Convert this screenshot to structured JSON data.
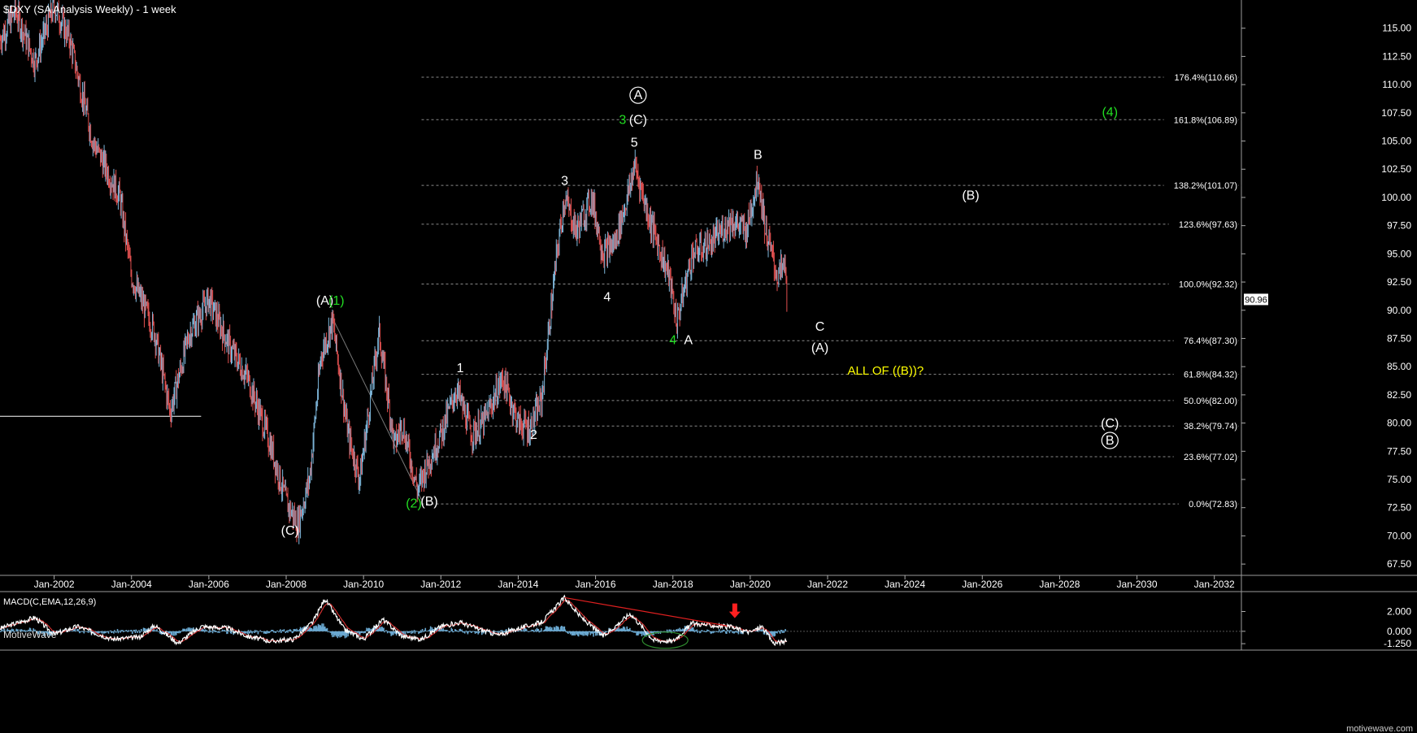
{
  "header": {
    "title": "$DXY (SA Analysis Weekly) - 1 week"
  },
  "watermark": "MotiveWave",
  "footer_brand": "motivewave.com",
  "price_tag": "90.96",
  "colors": {
    "background": "#000000",
    "bar_up": "#7fb8dc",
    "bar_down": "#e05050",
    "fib_line": "#8a8a8a",
    "green_label": "#22dd22",
    "yellow_label": "#ffff00",
    "macd_line": "#ffffff",
    "signal_line": "#d03030",
    "histogram": "#6aa8d0",
    "arrow": "#ff2020"
  },
  "chart_data": [
    {
      "type": "candlestick",
      "title": "$DXY (SA Analysis Weekly) - 1 week",
      "ylim": [
        66.5,
        117.5
      ],
      "xlim": [
        2000.6,
        2032.7
      ],
      "y_ticks": [
        "67.50",
        "70.00",
        "72.50",
        "75.00",
        "77.50",
        "80.00",
        "82.50",
        "85.00",
        "87.50",
        "90.00",
        "92.50",
        "95.00",
        "97.50",
        "100.00",
        "102.50",
        "105.00",
        "107.50",
        "110.00",
        "112.50",
        "115.00"
      ],
      "x_ticks": [
        "Jan-2002",
        "Jan-2004",
        "Jan-2006",
        "Jan-2008",
        "Jan-2010",
        "Jan-2012",
        "Jan-2014",
        "Jan-2016",
        "Jan-2018",
        "Jan-2020",
        "Jan-2022",
        "Jan-2024",
        "Jan-2026",
        "Jan-2028",
        "Jan-2030",
        "Jan-2032"
      ],
      "last_price": 90.96,
      "price_path": [
        [
          2000.6,
          114
        ],
        [
          2001.0,
          116.5
        ],
        [
          2001.5,
          112
        ],
        [
          2002.0,
          117
        ],
        [
          2002.4,
          114
        ],
        [
          2003.0,
          105
        ],
        [
          2003.7,
          100
        ],
        [
          2004.0,
          93
        ],
        [
          2004.6,
          88
        ],
        [
          2005.0,
          81
        ],
        [
          2005.5,
          88
        ],
        [
          2006.0,
          91
        ],
        [
          2006.5,
          87
        ],
        [
          2007.0,
          84
        ],
        [
          2007.6,
          78
        ],
        [
          2008.0,
          73
        ],
        [
          2008.3,
          71
        ],
        [
          2008.6,
          75
        ],
        [
          2008.9,
          86
        ],
        [
          2009.2,
          89
        ],
        [
          2009.6,
          79
        ],
        [
          2009.9,
          75
        ],
        [
          2010.4,
          88
        ],
        [
          2010.8,
          78
        ],
        [
          2011.0,
          80
        ],
        [
          2011.4,
          74
        ],
        [
          2011.6,
          76
        ],
        [
          2012.0,
          79
        ],
        [
          2012.4,
          83
        ],
        [
          2012.8,
          79
        ],
        [
          2013.1,
          80
        ],
        [
          2013.6,
          84
        ],
        [
          2014.0,
          80
        ],
        [
          2014.3,
          79.5
        ],
        [
          2014.6,
          82
        ],
        [
          2015.0,
          95
        ],
        [
          2015.2,
          100
        ],
        [
          2015.5,
          97
        ],
        [
          2015.9,
          100
        ],
        [
          2016.2,
          95
        ],
        [
          2016.5,
          96
        ],
        [
          2016.9,
          101
        ],
        [
          2017.0,
          103
        ],
        [
          2017.4,
          98
        ],
        [
          2017.9,
          93
        ],
        [
          2018.1,
          89
        ],
        [
          2018.5,
          95
        ],
        [
          2019.0,
          96
        ],
        [
          2019.5,
          98
        ],
        [
          2019.9,
          97
        ],
        [
          2020.2,
          102
        ],
        [
          2020.4,
          97
        ],
        [
          2020.7,
          93
        ],
        [
          2020.9,
          94
        ],
        [
          2020.95,
          91
        ]
      ],
      "fib_levels": [
        {
          "label": "176.4%(110.66)",
          "value": 110.66
        },
        {
          "label": "161.8%(106.89)",
          "value": 106.89
        },
        {
          "label": "138.2%(101.07)",
          "value": 101.07
        },
        {
          "label": "123.6%(97.63)",
          "value": 97.63
        },
        {
          "label": "100.0%(92.32)",
          "value": 92.32
        },
        {
          "label": "76.4%(87.30)",
          "value": 87.3
        },
        {
          "label": "61.8%(84.32)",
          "value": 84.32
        },
        {
          "label": "50.0%(82.00)",
          "value": 82.0
        },
        {
          "label": "38.2%(79.74)",
          "value": 79.74
        },
        {
          "label": "23.6%(77.02)",
          "value": 77.02
        },
        {
          "label": "0.0%(72.83)",
          "value": 72.83
        }
      ],
      "wave_labels": [
        {
          "text": "(A)",
          "x": 2009.0,
          "y": 90.5,
          "color": "white"
        },
        {
          "text": "(1)",
          "x": 2009.3,
          "y": 90.5,
          "color": "green"
        },
        {
          "text": "(C)",
          "x": 2008.1,
          "y": 70.1,
          "color": "white"
        },
        {
          "text": "(2)",
          "x": 2011.3,
          "y": 72.5,
          "color": "green"
        },
        {
          "text": "(B)",
          "x": 2011.7,
          "y": 72.7,
          "color": "white"
        },
        {
          "text": "1",
          "x": 2012.5,
          "y": 84.5,
          "color": "white"
        },
        {
          "text": "2",
          "x": 2014.4,
          "y": 78.6,
          "color": "white"
        },
        {
          "text": "3",
          "x": 2015.2,
          "y": 101.1,
          "color": "white"
        },
        {
          "text": "4",
          "x": 2016.3,
          "y": 90.8,
          "color": "white"
        },
        {
          "text": "5",
          "x": 2017.0,
          "y": 104.5,
          "color": "white"
        },
        {
          "text": "3",
          "x": 2016.7,
          "y": 106.5,
          "color": "green"
        },
        {
          "text": "(C)",
          "x": 2017.1,
          "y": 106.5,
          "color": "white"
        },
        {
          "text": "A",
          "x": 2017.1,
          "y": 108.7,
          "color": "white",
          "circled": true
        },
        {
          "text": "4",
          "x": 2018.0,
          "y": 87.0,
          "color": "green"
        },
        {
          "text": "A",
          "x": 2018.4,
          "y": 87.0,
          "color": "white"
        },
        {
          "text": "B",
          "x": 2020.2,
          "y": 103.4,
          "color": "white"
        },
        {
          "text": "C",
          "x": 2021.8,
          "y": 88.2,
          "color": "white"
        },
        {
          "text": "(A)",
          "x": 2021.8,
          "y": 86.3,
          "color": "white"
        },
        {
          "text": "ALL OF ((B))?",
          "x": 2023.5,
          "y": 84.3,
          "color": "yellow"
        },
        {
          "text": "(B)",
          "x": 2025.7,
          "y": 99.8,
          "color": "white"
        },
        {
          "text": "(4)",
          "x": 2029.3,
          "y": 107.2,
          "color": "green"
        },
        {
          "text": "(C)",
          "x": 2029.3,
          "y": 79.6,
          "color": "white"
        },
        {
          "text": "B",
          "x": 2029.3,
          "y": 78.1,
          "color": "white",
          "circled": true
        }
      ]
    },
    {
      "type": "line",
      "title": "MACD(C,EMA,12,26,9)",
      "ylim": [
        -1.9,
        3.6
      ],
      "y_ticks": [
        "2.000",
        "0.000",
        "-1.250"
      ],
      "series": [],
      "macd_path": [
        [
          2000.6,
          0.3
        ],
        [
          2001.5,
          1.4
        ],
        [
          2002.0,
          -0.3
        ],
        [
          2002.6,
          0.5
        ],
        [
          2003.5,
          -0.8
        ],
        [
          2004.2,
          -0.6
        ],
        [
          2004.6,
          0.6
        ],
        [
          2005.2,
          -1.2
        ],
        [
          2005.8,
          0.5
        ],
        [
          2006.5,
          0.3
        ],
        [
          2007.0,
          -0.5
        ],
        [
          2007.6,
          -1.0
        ],
        [
          2008.2,
          -0.8
        ],
        [
          2008.7,
          1.0
        ],
        [
          2009.0,
          3.3
        ],
        [
          2009.5,
          0.2
        ],
        [
          2010.0,
          -0.8
        ],
        [
          2010.5,
          1.2
        ],
        [
          2011.0,
          -0.5
        ],
        [
          2011.5,
          -0.8
        ],
        [
          2012.0,
          0.5
        ],
        [
          2012.5,
          0.9
        ],
        [
          2013.0,
          0.2
        ],
        [
          2013.5,
          -0.4
        ],
        [
          2014.0,
          0.3
        ],
        [
          2014.6,
          0.9
        ],
        [
          2015.2,
          3.4
        ],
        [
          2015.6,
          1.5
        ],
        [
          2016.2,
          -0.5
        ],
        [
          2016.9,
          1.8
        ],
        [
          2017.5,
          -0.9
        ],
        [
          2018.0,
          -1.0
        ],
        [
          2018.5,
          0.8
        ],
        [
          2019.0,
          0.6
        ],
        [
          2019.5,
          0.4
        ],
        [
          2020.0,
          -0.1
        ],
        [
          2020.3,
          0.5
        ],
        [
          2020.6,
          -1.2
        ],
        [
          2020.95,
          -1.0
        ]
      ]
    }
  ]
}
